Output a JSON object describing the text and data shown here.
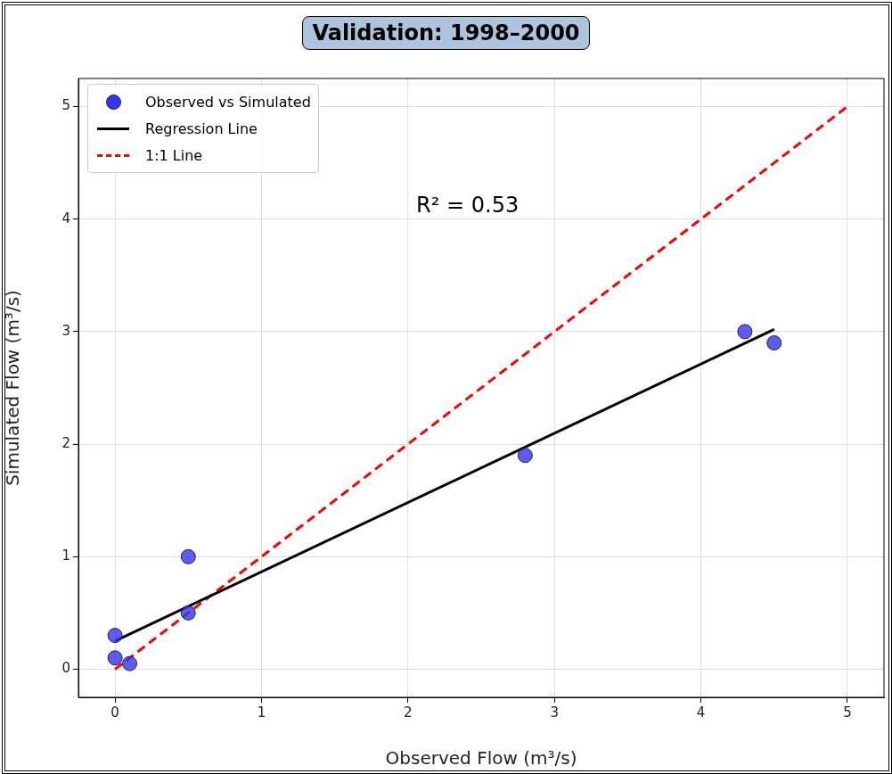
{
  "chart_data": {
    "type": "scatter",
    "title": "Validation: 1998–2000",
    "xlabel": "Observed Flow (m³/s)",
    "ylabel": "Simulated Flow (m³/s)",
    "series": [
      {
        "name": "Observed vs Simulated",
        "color": "#3535f0",
        "marker": "circle",
        "x": [
          0,
          0,
          0.1,
          0.5,
          0.5,
          2.8,
          4.3,
          4.5
        ],
        "values": [
          0.3,
          0.1,
          0.05,
          1.0,
          0.5,
          1.9,
          3.0,
          2.9
        ]
      },
      {
        "name": "Regression Line",
        "type": "line",
        "color": "#000000",
        "marker": "none",
        "line_style": "solid",
        "x": [
          0,
          4.5
        ],
        "values": [
          0.25,
          3.02
        ]
      },
      {
        "name": "1:1 Line",
        "type": "line",
        "color": "#ff0000",
        "marker": "none",
        "line_style": "dashed",
        "x": [
          0,
          5
        ],
        "values": [
          0,
          5
        ]
      }
    ],
    "xlim": [
      -0.25,
      5.25
    ],
    "ylim": [
      -0.25,
      5.25
    ],
    "xticks": [
      0,
      1,
      2,
      3,
      4,
      5
    ],
    "yticks": [
      0,
      1,
      2,
      3,
      4,
      5
    ],
    "grid": true,
    "legend": "top left",
    "annotations": [
      "R² = 0.53"
    ]
  }
}
